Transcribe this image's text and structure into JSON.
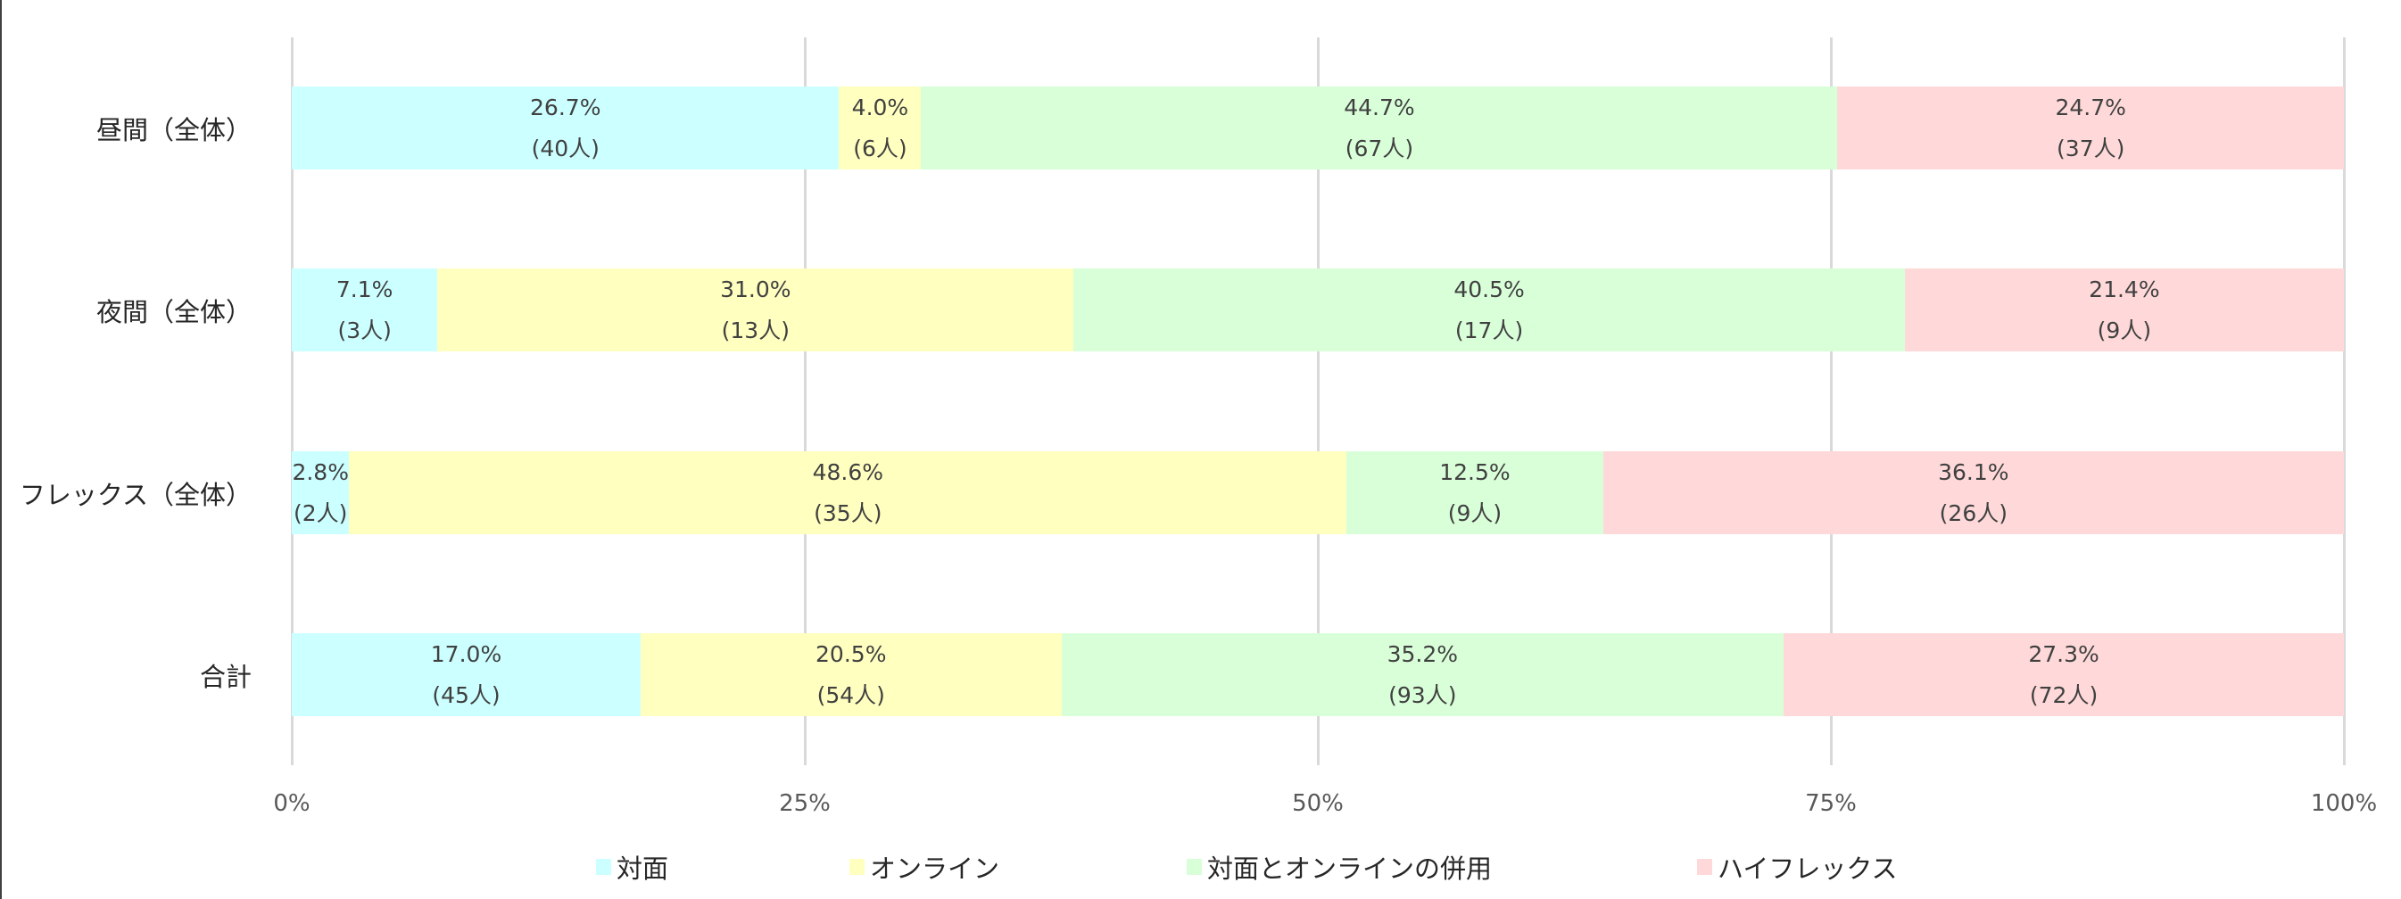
{
  "chart_data": {
    "type": "bar",
    "orientation": "horizontal",
    "stacked": "percent",
    "title": "",
    "xlabel": "",
    "ylabel": "",
    "xlim": [
      0,
      100
    ],
    "grid": true,
    "legend_position": "bottom",
    "categories": [
      "昼間（全体）",
      "夜間（全体）",
      "フレックス（全体）",
      "合計"
    ],
    "x_ticks": [
      "0%",
      "25%",
      "50%",
      "75%",
      "100%"
    ],
    "series": [
      {
        "name": "対面",
        "color": "#CCFFFF",
        "values": [
          26.7,
          7.1,
          2.8,
          17.0
        ],
        "counts": [
          40,
          3,
          2,
          45
        ],
        "labels": [
          [
            "26.7%",
            "(40人)"
          ],
          [
            "7.1%",
            "(3人)"
          ],
          [
            "2.8%",
            "(2人)"
          ],
          [
            "17.0%",
            "(45人)"
          ]
        ]
      },
      {
        "name": "オンライン",
        "color": "#FFFFC0",
        "values": [
          4.0,
          31.0,
          48.6,
          20.5
        ],
        "counts": [
          6,
          13,
          35,
          54
        ],
        "labels": [
          [
            "4.0%",
            "(6人)"
          ],
          [
            "31.0%",
            "(13人)"
          ],
          [
            "48.6%",
            "(35人)"
          ],
          [
            "20.5%",
            "(54人)"
          ]
        ]
      },
      {
        "name": "対面とオンラインの併用",
        "color": "#D9FFD9",
        "values": [
          44.7,
          40.5,
          12.5,
          35.2
        ],
        "counts": [
          67,
          17,
          9,
          93
        ],
        "labels": [
          [
            "44.7%",
            "(67人)"
          ],
          [
            "40.5%",
            "(17人)"
          ],
          [
            "12.5%",
            "(9人)"
          ],
          [
            "35.2%",
            "(93人)"
          ]
        ]
      },
      {
        "name": "ハイフレックス",
        "color": "#FFD9D9",
        "values": [
          24.7,
          21.4,
          36.1,
          27.3
        ],
        "counts": [
          37,
          9,
          26,
          72
        ],
        "labels": [
          [
            "24.7%",
            "(37人)"
          ],
          [
            "21.4%",
            "(9人)"
          ],
          [
            "36.1%",
            "(26人)"
          ],
          [
            "27.3%",
            "(72人)"
          ]
        ]
      }
    ]
  },
  "legend": {
    "items": [
      {
        "label": "対面",
        "color": "#CCFFFF"
      },
      {
        "label": "オンライン",
        "color": "#FFFFC0"
      },
      {
        "label": "対面とオンラインの併用",
        "color": "#D9FFD9"
      },
      {
        "label": "ハイフレックス",
        "color": "#FFD9D9"
      }
    ]
  }
}
